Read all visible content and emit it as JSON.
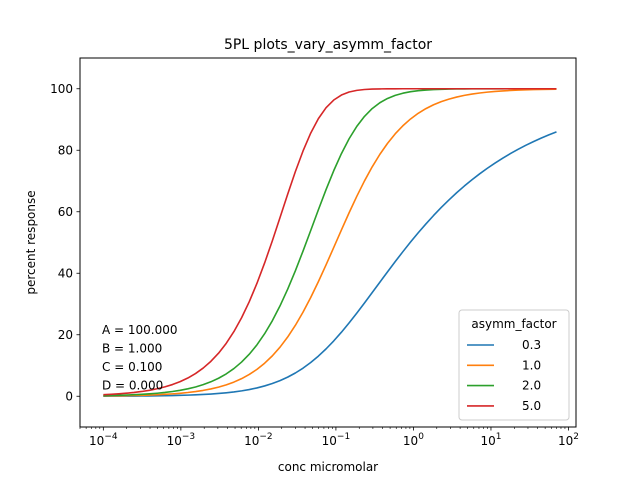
{
  "chart_data": {
    "type": "line",
    "title": "5PL plots_vary_asymm_factor",
    "xlabel": "conc micromolar",
    "ylabel": "percent response",
    "xscale": "log",
    "xlim": [
      5e-05,
      125
    ],
    "ylim": [
      -10,
      110
    ],
    "xticks": [
      {
        "value": 0.0001,
        "base": "10",
        "exp": "−4"
      },
      {
        "value": 0.001,
        "base": "10",
        "exp": "−3"
      },
      {
        "value": 0.01,
        "base": "10",
        "exp": "−2"
      },
      {
        "value": 0.1,
        "base": "10",
        "exp": "−1"
      },
      {
        "value": 1,
        "base": "10",
        "exp": "0"
      },
      {
        "value": 10,
        "base": "10",
        "exp": "1"
      },
      {
        "value": 100,
        "base": "10",
        "exp": "2"
      }
    ],
    "yticks": [
      0,
      20,
      40,
      60,
      80,
      100
    ],
    "grid": false,
    "legend": {
      "title": "asymm_factor",
      "placement": "lower-right"
    },
    "annotations": [
      "A = 100.000",
      "B = 1.000",
      "C = 0.100",
      "D = 0.000"
    ],
    "params": {
      "A": 100,
      "B": 1,
      "C": 0.1,
      "D": 0
    },
    "x_range": [
      0.0001,
      70
    ],
    "series": [
      {
        "name": "0.3",
        "asymm": 0.3,
        "color": "#1f77b4"
      },
      {
        "name": "1.0",
        "asymm": 1.0,
        "color": "#ff7f0e"
      },
      {
        "name": "2.0",
        "asymm": 2.0,
        "color": "#2ca02c"
      },
      {
        "name": "5.0",
        "asymm": 5.0,
        "color": "#d62728"
      }
    ]
  }
}
